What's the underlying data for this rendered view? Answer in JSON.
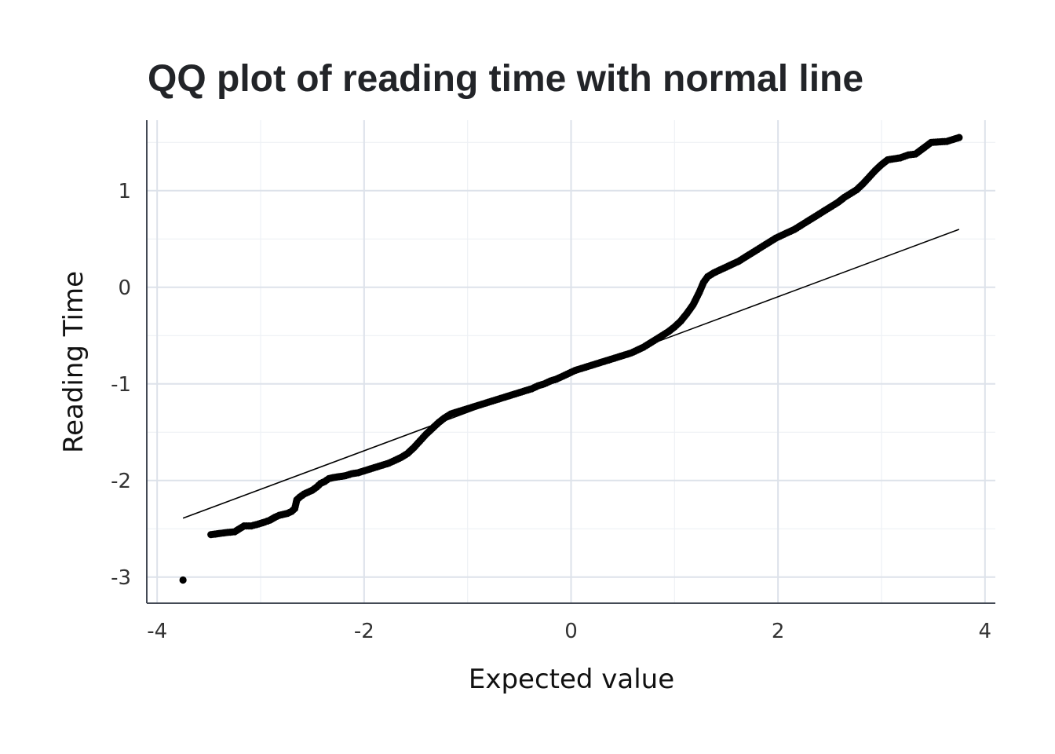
{
  "chart_data": {
    "type": "scatter",
    "title": "QQ plot of reading time with normal line",
    "xlabel": "Expected value",
    "ylabel": "Reading Time",
    "xlim": [
      -4.1,
      4.1
    ],
    "ylim": [
      -3.27,
      1.73
    ],
    "x_ticks": [
      -4,
      -2,
      0,
      2,
      4
    ],
    "x_tick_labels": [
      "-4",
      "-2",
      "0",
      "2",
      "4"
    ],
    "y_ticks": [
      -3,
      -2,
      -1,
      0,
      1
    ],
    "y_tick_labels": [
      "-3",
      "-2",
      "-1",
      "0",
      "1"
    ],
    "grid": true,
    "point_color": "#000000",
    "series": [
      {
        "kind": "points",
        "points": [
          [
            -3.75,
            -3.03
          ],
          [
            -3.48,
            -2.56
          ],
          [
            -3.34,
            -2.54
          ],
          [
            -3.25,
            -2.53
          ],
          [
            -3.16,
            -2.47
          ],
          [
            -3.09,
            -2.47
          ],
          [
            -3.02,
            -2.45
          ],
          [
            -2.96,
            -2.43
          ],
          [
            -2.91,
            -2.41
          ],
          [
            -2.86,
            -2.38
          ],
          [
            -2.82,
            -2.36
          ],
          [
            -2.78,
            -2.35
          ],
          [
            -2.74,
            -2.34
          ],
          [
            -2.7,
            -2.32
          ],
          [
            -2.67,
            -2.29
          ],
          [
            -2.65,
            -2.2
          ],
          [
            -2.62,
            -2.17
          ],
          [
            -2.58,
            -2.14
          ],
          [
            -2.54,
            -2.12
          ],
          [
            -2.5,
            -2.1
          ],
          [
            -2.46,
            -2.07
          ],
          [
            -2.42,
            -2.03
          ],
          [
            -2.38,
            -2.01
          ],
          [
            -2.34,
            -1.98
          ],
          [
            -2.3,
            -1.97
          ],
          [
            -2.24,
            -1.96
          ],
          [
            -2.18,
            -1.95
          ],
          [
            -2.12,
            -1.93
          ],
          [
            -2.06,
            -1.92
          ],
          [
            -2.0,
            -1.9
          ],
          [
            -1.94,
            -1.88
          ],
          [
            -1.88,
            -1.86
          ],
          [
            -1.82,
            -1.84
          ],
          [
            -1.76,
            -1.82
          ],
          [
            -1.7,
            -1.79
          ],
          [
            -1.64,
            -1.76
          ],
          [
            -1.58,
            -1.72
          ],
          [
            -1.52,
            -1.66
          ],
          [
            -1.46,
            -1.59
          ],
          [
            -1.4,
            -1.52
          ],
          [
            -1.34,
            -1.46
          ],
          [
            -1.28,
            -1.4
          ],
          [
            -1.22,
            -1.35
          ],
          [
            -1.16,
            -1.31
          ],
          [
            -1.1,
            -1.29
          ],
          [
            -1.04,
            -1.27
          ],
          [
            -0.98,
            -1.25
          ],
          [
            -0.92,
            -1.23
          ],
          [
            -0.86,
            -1.21
          ],
          [
            -0.8,
            -1.19
          ],
          [
            -0.74,
            -1.17
          ],
          [
            -0.68,
            -1.15
          ],
          [
            -0.62,
            -1.13
          ],
          [
            -0.56,
            -1.11
          ],
          [
            -0.5,
            -1.09
          ],
          [
            -0.44,
            -1.07
          ],
          [
            -0.38,
            -1.05
          ],
          [
            -0.32,
            -1.02
          ],
          [
            -0.26,
            -1.0
          ],
          [
            -0.2,
            -0.97
          ],
          [
            -0.14,
            -0.95
          ],
          [
            -0.08,
            -0.92
          ],
          [
            -0.02,
            -0.89
          ],
          [
            0.04,
            -0.86
          ],
          [
            0.1,
            -0.84
          ],
          [
            0.16,
            -0.82
          ],
          [
            0.22,
            -0.8
          ],
          [
            0.28,
            -0.78
          ],
          [
            0.34,
            -0.76
          ],
          [
            0.4,
            -0.74
          ],
          [
            0.46,
            -0.72
          ],
          [
            0.52,
            -0.7
          ],
          [
            0.58,
            -0.68
          ],
          [
            0.64,
            -0.65
          ],
          [
            0.7,
            -0.62
          ],
          [
            0.76,
            -0.58
          ],
          [
            0.82,
            -0.54
          ],
          [
            0.88,
            -0.5
          ],
          [
            0.94,
            -0.46
          ],
          [
            1.0,
            -0.41
          ],
          [
            1.06,
            -0.35
          ],
          [
            1.12,
            -0.27
          ],
          [
            1.18,
            -0.18
          ],
          [
            1.24,
            -0.05
          ],
          [
            1.28,
            0.05
          ],
          [
            1.32,
            0.11
          ],
          [
            1.38,
            0.15
          ],
          [
            1.44,
            0.18
          ],
          [
            1.5,
            0.21
          ],
          [
            1.56,
            0.24
          ],
          [
            1.62,
            0.27
          ],
          [
            1.68,
            0.31
          ],
          [
            1.74,
            0.35
          ],
          [
            1.8,
            0.39
          ],
          [
            1.86,
            0.43
          ],
          [
            1.92,
            0.47
          ],
          [
            1.98,
            0.51
          ],
          [
            2.04,
            0.54
          ],
          [
            2.1,
            0.57
          ],
          [
            2.16,
            0.6
          ],
          [
            2.22,
            0.64
          ],
          [
            2.28,
            0.68
          ],
          [
            2.34,
            0.72
          ],
          [
            2.4,
            0.76
          ],
          [
            2.46,
            0.8
          ],
          [
            2.52,
            0.84
          ],
          [
            2.58,
            0.88
          ],
          [
            2.64,
            0.93
          ],
          [
            2.7,
            0.97
          ],
          [
            2.76,
            1.01
          ],
          [
            2.82,
            1.07
          ],
          [
            2.88,
            1.14
          ],
          [
            2.94,
            1.21
          ],
          [
            3.0,
            1.27
          ],
          [
            3.06,
            1.32
          ],
          [
            3.12,
            1.33
          ],
          [
            3.18,
            1.34
          ],
          [
            3.26,
            1.37
          ],
          [
            3.33,
            1.38
          ],
          [
            3.48,
            1.5
          ],
          [
            3.63,
            1.51
          ],
          [
            3.75,
            1.55
          ]
        ]
      },
      {
        "kind": "line",
        "points": [
          [
            -3.75,
            -2.39
          ],
          [
            3.75,
            0.6
          ]
        ]
      }
    ]
  }
}
